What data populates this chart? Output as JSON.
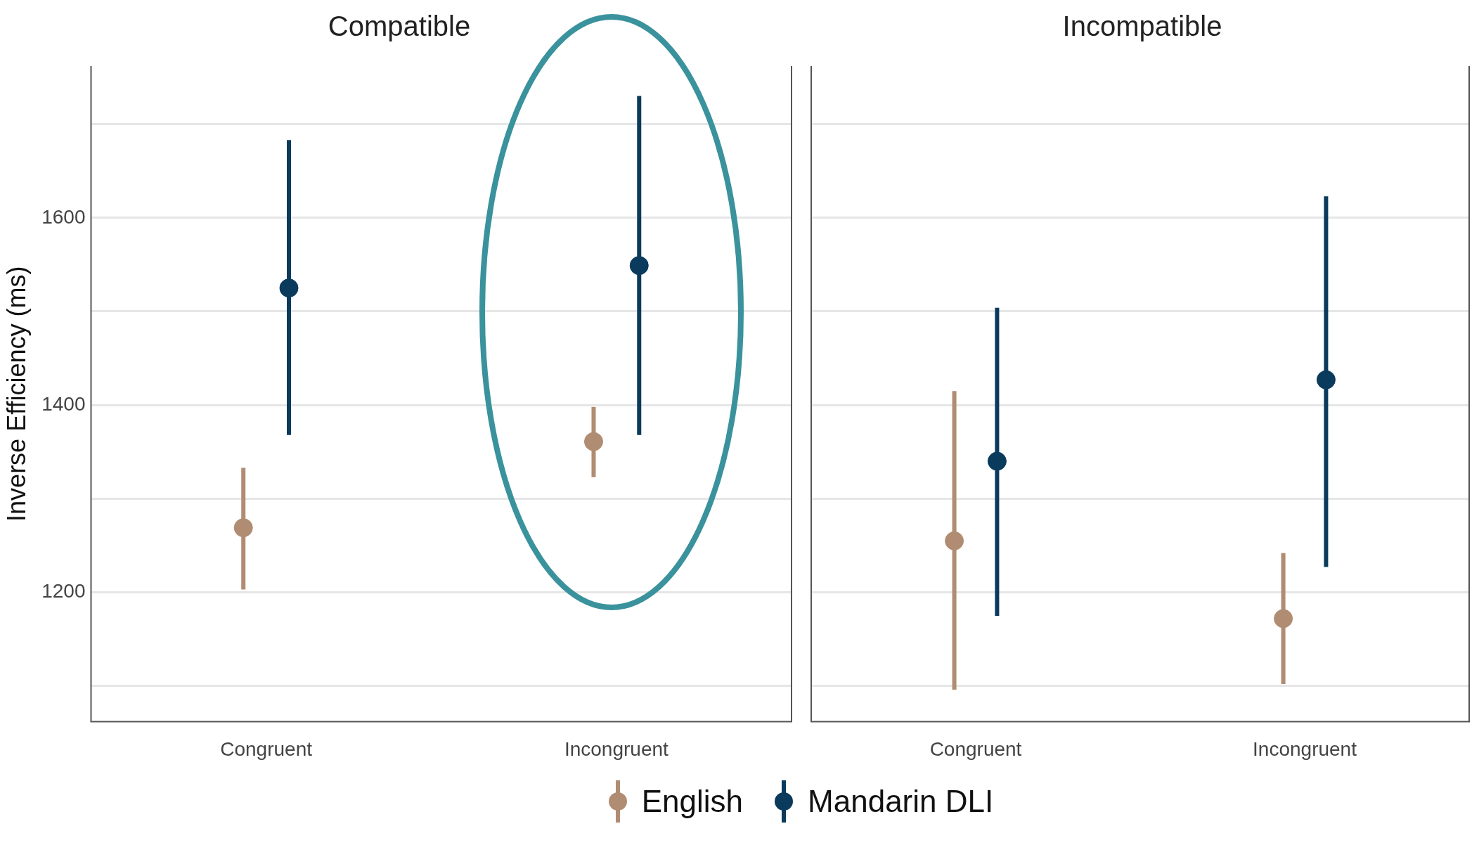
{
  "chart_data": [
    {
      "type": "scatter",
      "title": "Compatible",
      "ylabel": "Inverse Efficiency (ms)",
      "categories": [
        "Congruent",
        "Incongruent"
      ],
      "ylim": [
        1062,
        1762
      ],
      "yticks": [
        {
          "value": 1100,
          "label": null
        },
        1200,
        {
          "value": 1300,
          "label": null
        },
        1400,
        {
          "value": 1500,
          "label": null
        },
        1600,
        {
          "value": 1700,
          "label": null
        }
      ],
      "grid": "y",
      "legend": "bottom",
      "marker": "circle",
      "series": [
        {
          "name": "English",
          "color": "#b08c72",
          "values": [
            1269,
            1361
          ],
          "errors": [
            [
              1203,
              1333
            ],
            [
              1323,
              1398
            ]
          ]
        },
        {
          "name": "Mandarin DLI",
          "color": "#0a3a5c",
          "values": [
            1525,
            1549
          ],
          "errors": [
            [
              1368,
              1683
            ],
            [
              1368,
              1730
            ]
          ]
        }
      ]
    },
    {
      "type": "scatter",
      "title": "Incompatible",
      "categories": [
        "Congruent",
        "Incongruent"
      ],
      "ylim": [
        1062,
        1762
      ],
      "yticks": [
        {
          "value": 1100,
          "label": null
        },
        1200,
        {
          "value": 1300,
          "label": null
        },
        1400,
        {
          "value": 1500,
          "label": null
        },
        1600,
        {
          "value": 1700,
          "label": null
        }
      ],
      "grid": "y",
      "tick_labels": "x",
      "marker": "circle",
      "series": [
        {
          "color": "#b08c72",
          "values": [
            1255,
            1172
          ],
          "errors": [
            [
              1096,
              1415
            ],
            [
              1102,
              1242
            ]
          ]
        },
        {
          "color": "#0a3a5c",
          "values": [
            1340,
            1427
          ],
          "errors": [
            [
              1175,
              1504
            ],
            [
              1227,
              1623
            ]
          ]
        }
      ]
    }
  ]
}
